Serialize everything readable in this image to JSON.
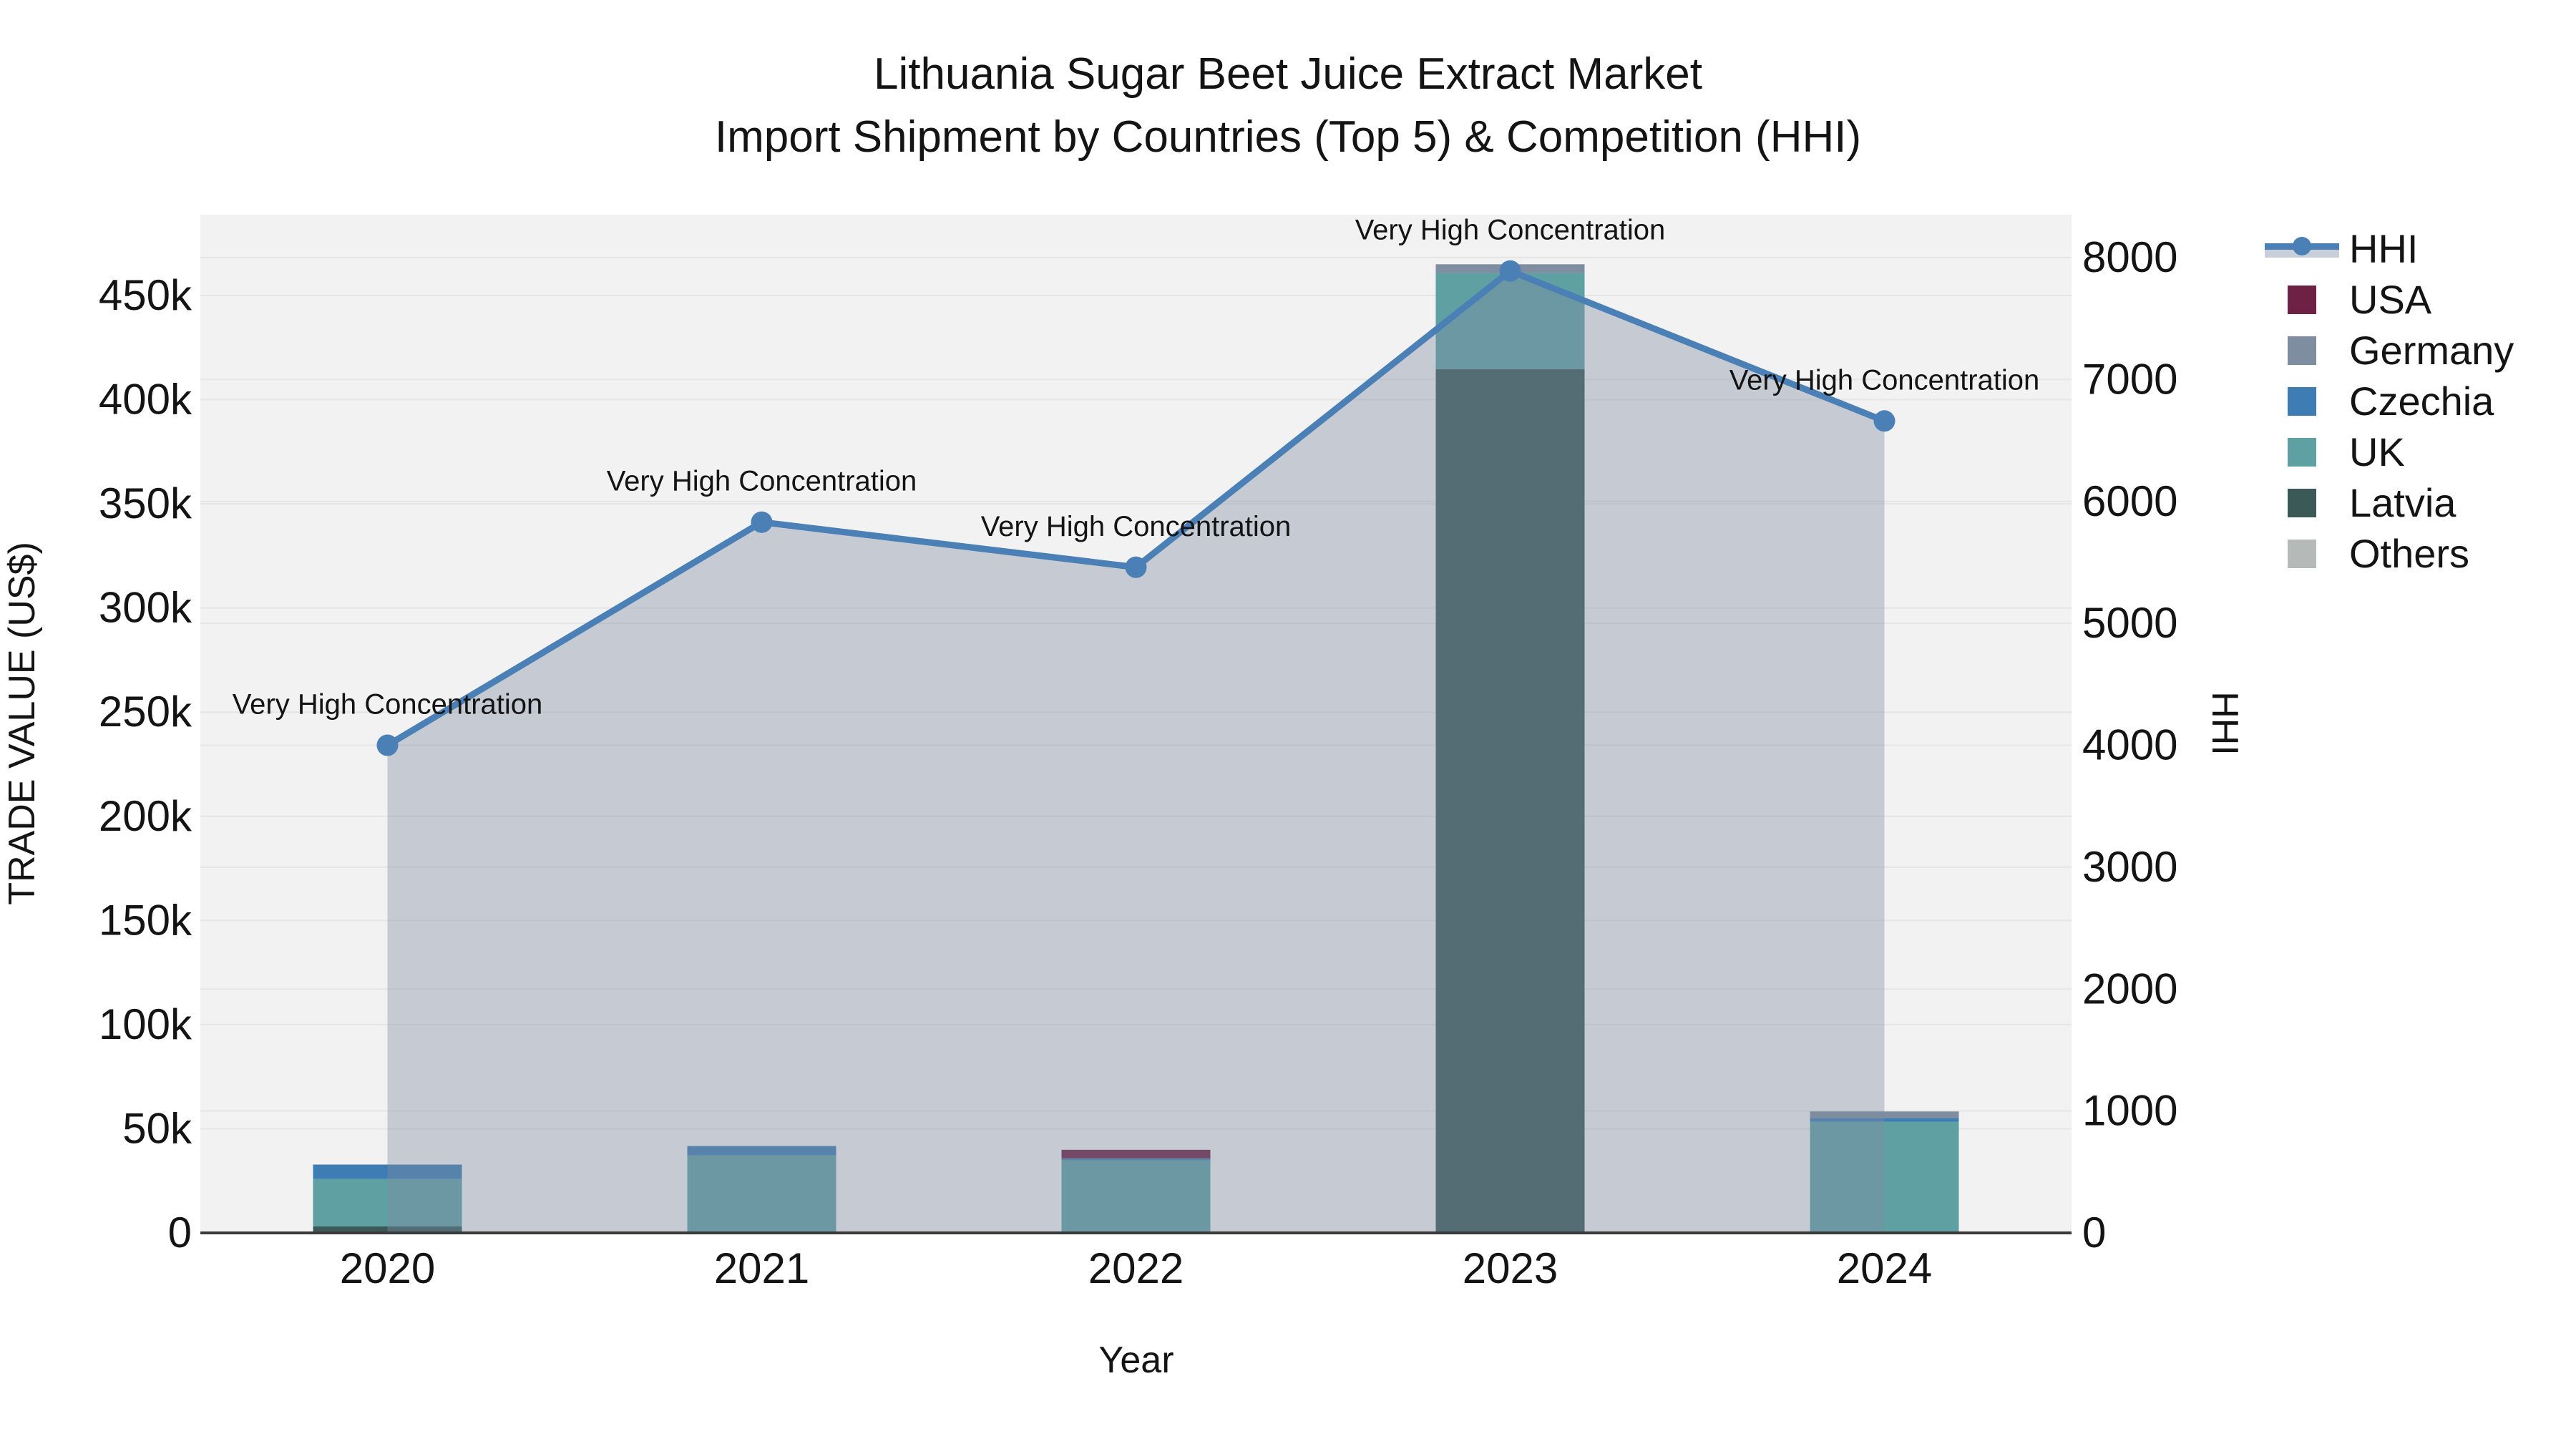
{
  "title": {
    "line1": "Lithuania Sugar Beet Juice Extract Market",
    "line2": "Import Shipment by Countries (Top 5) & Competition (HHI)"
  },
  "axes": {
    "x_title": "Year",
    "y_left_title": "TRADE VALUE (US$)",
    "y_right_title": "HHI",
    "y_left_ticks": [
      "0",
      "50k",
      "100k",
      "150k",
      "200k",
      "250k",
      "300k",
      "350k",
      "400k",
      "450k"
    ],
    "y_right_ticks": [
      "0",
      "1000",
      "2000",
      "3000",
      "4000",
      "5000",
      "6000",
      "7000",
      "8000"
    ]
  },
  "chart_data": {
    "type": "bar",
    "subtype": "stacked-bars-with-line",
    "categories": [
      "2020",
      "2021",
      "2022",
      "2023",
      "2024"
    ],
    "xlabel": "Year",
    "ylabel_left": "TRADE VALUE (US$)",
    "ylabel_right": "HHI",
    "ylim_left": [
      0,
      490000
    ],
    "ylim_right": [
      0,
      8365
    ],
    "grid": true,
    "legend_position": "right",
    "series": [
      {
        "name": "USA",
        "type": "bar",
        "color": "#6e2144",
        "values": [
          0,
          0,
          4100,
          0,
          0
        ]
      },
      {
        "name": "Germany",
        "type": "bar",
        "color": "#7e8da0",
        "values": [
          0,
          0,
          0,
          4200,
          3200
        ]
      },
      {
        "name": "Czechia",
        "type": "bar",
        "color": "#3e7cb4",
        "values": [
          6900,
          4500,
          1000,
          0,
          1700
        ]
      },
      {
        "name": "UK",
        "type": "bar",
        "color": "#5fa0a3",
        "values": [
          22800,
          37200,
          34800,
          46200,
          53400
        ]
      },
      {
        "name": "Latvia",
        "type": "bar",
        "color": "#3b5a57",
        "values": [
          3100,
          0,
          0,
          414600,
          0
        ]
      },
      {
        "name": "Others",
        "type": "bar",
        "color": "#b5b9b8",
        "values": [
          0,
          0,
          0,
          0,
          0
        ]
      }
    ],
    "stack_order_bottom_to_top": [
      "Others",
      "Latvia",
      "UK",
      "Czechia",
      "Germany",
      "USA"
    ],
    "hhi_line": {
      "name": "HHI",
      "type": "line",
      "color": "#4a80b5",
      "fill_color": "rgba(125,140,160,0.38)",
      "values": [
        4000,
        5830,
        5460,
        7890,
        6660
      ]
    },
    "annotations": [
      {
        "year": "2020",
        "text": "Very High Concentration"
      },
      {
        "year": "2021",
        "text": "Very High Concentration"
      },
      {
        "year": "2022",
        "text": "Very High Concentration"
      },
      {
        "year": "2023",
        "text": "Very High Concentration"
      },
      {
        "year": "2024",
        "text": "Very High Concentration"
      }
    ]
  },
  "legend": {
    "items": [
      {
        "label": "HHI",
        "kind": "line",
        "color": "#4a80b5"
      },
      {
        "label": "USA",
        "kind": "swatch",
        "color": "#6e2144"
      },
      {
        "label": "Germany",
        "kind": "swatch",
        "color": "#7e8da0"
      },
      {
        "label": "Czechia",
        "kind": "swatch",
        "color": "#3e7cb4"
      },
      {
        "label": "UK",
        "kind": "swatch",
        "color": "#5fa0a3"
      },
      {
        "label": "Latvia",
        "kind": "swatch",
        "color": "#3b5a57"
      },
      {
        "label": "Others",
        "kind": "swatch",
        "color": "#b5b9b8"
      }
    ]
  },
  "colors": {
    "plot_background": "#f2f2f2",
    "gridline": "#e5e5e5",
    "axis_line": "#3a3a3a",
    "text": "#141414"
  }
}
